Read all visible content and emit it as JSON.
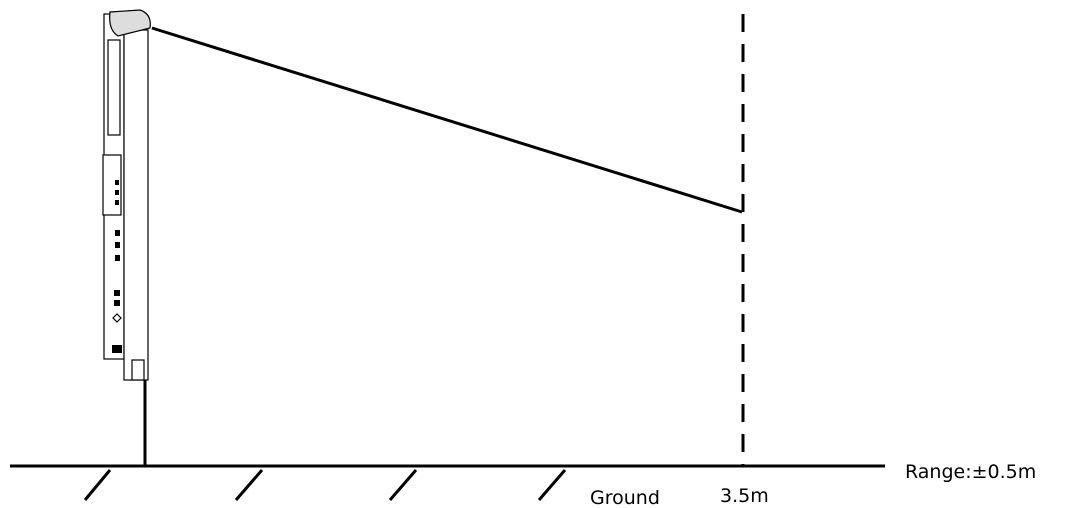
{
  "labels": {
    "ground": "Ground",
    "distance": "3.5m",
    "range": "Range:±0.5m"
  }
}
